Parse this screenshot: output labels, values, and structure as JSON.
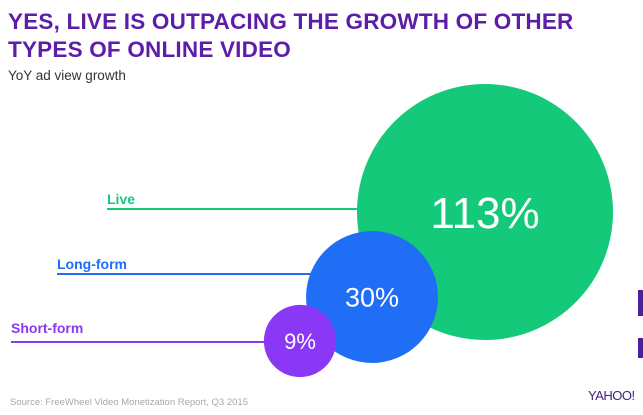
{
  "header": {
    "title": "YES, LIVE IS OUTPACING THE GROWTH OF OTHER TYPES OF ONLINE VIDEO",
    "subtitle": "YoY ad view growth"
  },
  "footer": {
    "source": "Source: FreeWheel Video Monetization Report, Q3 2015",
    "logo": "YAHOO!"
  },
  "chart_data": {
    "type": "bubble",
    "title": "YES, LIVE IS OUTPACING THE GROWTH OF OTHER TYPES OF ONLINE VIDEO",
    "subtitle": "YoY ad view growth",
    "categories": [
      "Live",
      "Long-form",
      "Short-form"
    ],
    "values": [
      113,
      30,
      9
    ],
    "labels": [
      "113%",
      "30%",
      "9%"
    ],
    "colors": [
      "#14c97a",
      "#1f6ef5",
      "#8a38f5"
    ],
    "unit": "%"
  }
}
